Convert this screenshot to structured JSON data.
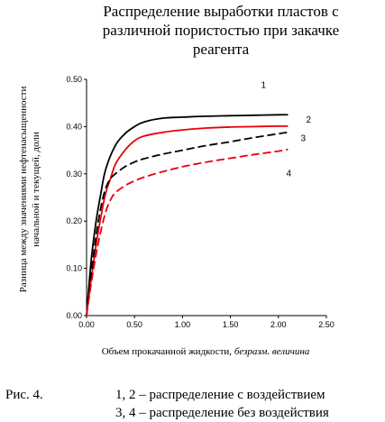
{
  "chart_data": {
    "type": "line",
    "title_lines": [
      "Распределение выработки пластов с",
      "различной пористостью при закачке",
      "реагента"
    ],
    "xlabel_parts": [
      "Объем прокачанной жидкости, ",
      "безразм. величина"
    ],
    "ylabel_lines": [
      "Разница между значениями нефтенасыщенности",
      "начальной и текущей,  доли"
    ],
    "xlim": [
      0,
      2.5
    ],
    "ylim": [
      0,
      0.5
    ],
    "x_ticks": [
      "0.00",
      "0.50",
      "1.00",
      "1.50",
      "2.00",
      "2.50"
    ],
    "y_ticks": [
      "0.00",
      "0.10",
      "0.20",
      "0.30",
      "0.40",
      "0.50"
    ],
    "x_tick_values": [
      0,
      0.5,
      1.0,
      1.5,
      2.0,
      2.5
    ],
    "y_tick_values": [
      0,
      0.1,
      0.2,
      0.3,
      0.4,
      0.5
    ],
    "grid": false,
    "series": [
      {
        "name": "1",
        "color": "#000000",
        "style": "solid",
        "x": [
          0,
          0.05,
          0.1,
          0.15,
          0.2,
          0.3,
          0.4,
          0.5,
          0.6,
          0.8,
          1.0,
          1.25,
          1.5,
          1.75,
          2.0,
          2.1
        ],
        "y": [
          0,
          0.12,
          0.2,
          0.26,
          0.31,
          0.36,
          0.385,
          0.4,
          0.41,
          0.418,
          0.42,
          0.422,
          0.423,
          0.424,
          0.425,
          0.425
        ]
      },
      {
        "name": "2",
        "color": "#e8000b",
        "style": "solid",
        "x": [
          0,
          0.05,
          0.1,
          0.15,
          0.2,
          0.25,
          0.3,
          0.4,
          0.5,
          0.6,
          0.8,
          1.0,
          1.25,
          1.5,
          1.75,
          2.0,
          2.1
        ],
        "y": [
          0,
          0.08,
          0.15,
          0.21,
          0.26,
          0.29,
          0.32,
          0.35,
          0.37,
          0.38,
          0.388,
          0.393,
          0.397,
          0.399,
          0.4,
          0.401,
          0.401
        ]
      },
      {
        "name": "3",
        "color": "#000000",
        "style": "dashed",
        "x": [
          0,
          0.05,
          0.1,
          0.15,
          0.2,
          0.25,
          0.3,
          0.4,
          0.5,
          0.6,
          0.8,
          1.0,
          1.25,
          1.5,
          1.75,
          2.0,
          2.1
        ],
        "y": [
          0,
          0.09,
          0.17,
          0.23,
          0.27,
          0.29,
          0.3,
          0.315,
          0.325,
          0.332,
          0.342,
          0.35,
          0.36,
          0.368,
          0.377,
          0.385,
          0.388
        ]
      },
      {
        "name": "4",
        "color": "#e8000b",
        "style": "dashed",
        "x": [
          0,
          0.05,
          0.1,
          0.15,
          0.2,
          0.25,
          0.3,
          0.4,
          0.5,
          0.6,
          0.8,
          1.0,
          1.25,
          1.5,
          1.75,
          2.0,
          2.1
        ],
        "y": [
          0,
          0.07,
          0.13,
          0.18,
          0.22,
          0.245,
          0.26,
          0.275,
          0.285,
          0.293,
          0.305,
          0.315,
          0.325,
          0.333,
          0.341,
          0.348,
          0.352
        ]
      }
    ]
  },
  "caption": {
    "figure_label": "Рис. 4.",
    "line1": "1, 2 – распределение с воздействием",
    "line2": "3, 4 – распределение без воздействия"
  }
}
